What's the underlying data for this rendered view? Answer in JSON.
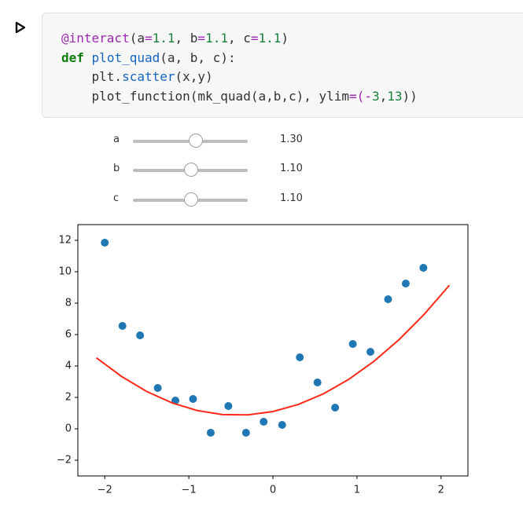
{
  "code": {
    "lines": [
      [
        {
          "text": "@interact",
          "color": "#9c27b0"
        },
        {
          "text": "(a",
          "color": "#333333"
        },
        {
          "text": "=",
          "color": "#9c27b0"
        },
        {
          "text": "1.1",
          "color": "#188038"
        },
        {
          "text": ", b",
          "color": "#333333"
        },
        {
          "text": "=",
          "color": "#9c27b0"
        },
        {
          "text": "1.1",
          "color": "#188038"
        },
        {
          "text": ", c",
          "color": "#333333"
        },
        {
          "text": "=",
          "color": "#9c27b0"
        },
        {
          "text": "1.1",
          "color": "#188038"
        },
        {
          "text": ")",
          "color": "#333333"
        }
      ],
      [
        {
          "text": "def",
          "color": "#0d7d0d",
          "bold": true
        },
        {
          "text": " ",
          "color": "#333333"
        },
        {
          "text": "plot_quad",
          "color": "#1565c0"
        },
        {
          "text": "(a, b, c):",
          "color": "#333333"
        }
      ],
      [
        {
          "text": "    plt.",
          "color": "#333333"
        },
        {
          "text": "scatter",
          "color": "#1565c0"
        },
        {
          "text": "(x,y)",
          "color": "#333333"
        }
      ],
      [
        {
          "text": "    plot_function(mk_quad(a,b,c), ylim",
          "color": "#333333"
        },
        {
          "text": "=(-",
          "color": "#9c27b0"
        },
        {
          "text": "3",
          "color": "#188038"
        },
        {
          "text": ",",
          "color": "#333333"
        },
        {
          "text": "13",
          "color": "#188038"
        },
        {
          "text": "))",
          "color": "#333333"
        }
      ]
    ]
  },
  "widgets": [
    {
      "label": "a",
      "value": "1.30"
    },
    {
      "label": "b",
      "value": "1.10"
    },
    {
      "label": "c",
      "value": "1.10"
    }
  ],
  "chart_data": {
    "type": "scatter",
    "series": [
      {
        "type": "scatter",
        "color": "#1f77b4",
        "x": [
          -2,
          -1.79,
          -1.58,
          -1.37,
          -1.16,
          -0.95,
          -0.74,
          -0.53,
          -0.32,
          -0.11,
          0.11,
          0.32,
          0.53,
          0.74,
          0.95,
          1.16,
          1.37,
          1.58,
          1.79
        ],
        "values": [
          11.85,
          6.55,
          5.95,
          2.6,
          1.8,
          1.9,
          -0.25,
          1.45,
          -0.25,
          0.45,
          0.25,
          4.55,
          2.95,
          1.35,
          5.4,
          4.9,
          8.25,
          9.25,
          10.25
        ]
      },
      {
        "type": "line",
        "color": "#ff2a1a",
        "x": [
          -2.1,
          -1.8,
          -1.5,
          -1.2,
          -0.9,
          -0.6,
          -0.3,
          0,
          0.3,
          0.6,
          0.9,
          1.2,
          1.5,
          1.8,
          2.1
        ],
        "values": [
          4.523,
          3.332,
          2.375,
          1.652,
          1.163,
          0.908,
          0.887,
          1.1,
          1.547,
          2.228,
          3.143,
          4.292,
          5.675,
          7.292,
          9.143
        ]
      }
    ],
    "xlim": [
      -2.32,
      2.32
    ],
    "ylim": [
      -3,
      13
    ],
    "xticks": [
      {
        "value": -2,
        "label": "−2"
      },
      {
        "value": -1,
        "label": "−1"
      },
      0,
      1,
      2
    ],
    "yticks": [
      {
        "value": -2,
        "label": "−2"
      },
      0,
      2,
      4,
      6,
      8,
      10,
      12
    ]
  }
}
